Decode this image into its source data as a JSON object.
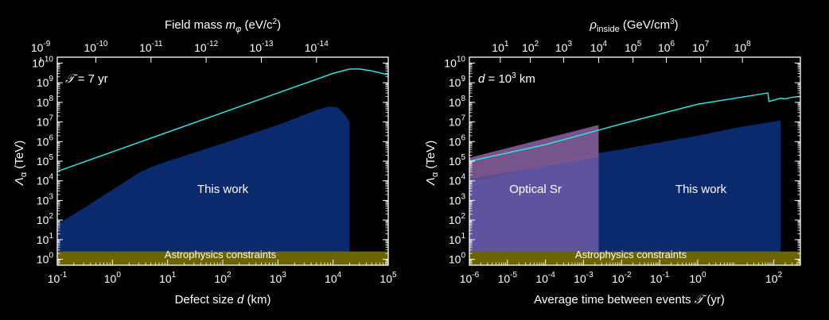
{
  "colors": {
    "background": "#000000",
    "region_fill": "#0b2a6e",
    "optical_fill": "#6f5aa8",
    "optical_top_fill": "#8a5a86",
    "astro_fill": "#6b6400",
    "curve": "#33dde0",
    "axis": "#ffffff"
  },
  "chart_data": [
    {
      "type": "area",
      "title": "",
      "xlabel": "Defect size d (km)",
      "ylabel": "Λα (TeV)",
      "top_axis_label": "Field mass mφ (eV/c²)",
      "xscale": "log",
      "yscale": "log",
      "xlim": [
        0.1,
        100000
      ],
      "ylim": [
        0.5,
        20000000000
      ],
      "x_ticks": [
        0.1,
        1,
        10,
        100,
        1000,
        10000,
        100000
      ],
      "x_tick_exponents": [
        "-1",
        "0",
        "1",
        "2",
        "3",
        "4",
        "5"
      ],
      "y_ticks": [
        1,
        10,
        100,
        1000,
        10000,
        100000,
        1000000,
        10000000,
        100000000,
        1000000000,
        10000000000
      ],
      "y_tick_exponents": [
        "0",
        "1",
        "2",
        "3",
        "4",
        "5",
        "6",
        "7",
        "8",
        "9",
        "10"
      ],
      "top_ticks": [
        {
          "x": 0.05,
          "exp": "-9"
        },
        {
          "x": 0.5,
          "exp": "-10"
        },
        {
          "x": 5,
          "exp": "-11"
        },
        {
          "x": 50,
          "exp": "-12"
        },
        {
          "x": 500,
          "exp": "-13"
        },
        {
          "x": 5000,
          "exp": "-14"
        }
      ],
      "annotation": "𝒯 = 7 yr",
      "series": [
        {
          "name": "This work",
          "kind": "region",
          "x": [
            0.1,
            0.3,
            1,
            3,
            5,
            10,
            100,
            1000,
            5000,
            8000,
            12000,
            16000,
            20000,
            20000
          ],
          "y": [
            60,
            400,
            3500,
            25000,
            50000,
            100000,
            800000,
            7000000,
            40000000,
            60000000,
            55000000,
            25000000,
            10000000,
            0.5
          ]
        },
        {
          "name": "curve",
          "kind": "line",
          "x": [
            0.1,
            1,
            10,
            100,
            1000,
            10000,
            20000,
            30000,
            50000,
            100000
          ],
          "y": [
            30000,
            300000,
            3000000,
            30000000,
            300000000,
            3000000000,
            5000000000,
            5000000000,
            4000000000,
            2500000000
          ]
        },
        {
          "name": "Astrophysics constraints",
          "kind": "band",
          "y_range": [
            0.5,
            2.5
          ]
        }
      ],
      "labels": [
        "This work",
        "Astrophysics constraints"
      ]
    },
    {
      "type": "area",
      "title": "",
      "xlabel": "Average time between events 𝒯 (yr)",
      "ylabel": "Λα (TeV)",
      "top_axis_label": "ρinside (GeV/cm³)",
      "xscale": "log",
      "yscale": "log",
      "xlim": [
        1e-06,
        500
      ],
      "ylim": [
        0.5,
        20000000000
      ],
      "x_ticks": [
        1e-06,
        1e-05,
        0.0001,
        0.001,
        0.01,
        0.1,
        1,
        100
      ],
      "x_tick_exponents": [
        "-6",
        "-5",
        "-4",
        "-3",
        "-2",
        "-1",
        "0",
        "2"
      ],
      "y_ticks": [
        1,
        10,
        100,
        1000,
        10000,
        100000,
        1000000,
        10000000,
        100000000,
        1000000000,
        10000000000
      ],
      "y_tick_exponents": [
        "0",
        "1",
        "2",
        "3",
        "4",
        "5",
        "6",
        "7",
        "8",
        "9",
        "10"
      ],
      "top_ticks": [
        {
          "x": 6.5e-06,
          "exp": "1"
        },
        {
          "x": 4e-05,
          "exp": "2"
        },
        {
          "x": 0.0003,
          "exp": "3"
        },
        {
          "x": 0.0025,
          "exp": "4"
        },
        {
          "x": 0.02,
          "exp": "5"
        },
        {
          "x": 0.15,
          "exp": "6"
        },
        {
          "x": 1.2,
          "exp": "7"
        },
        {
          "x": 15,
          "exp": "8"
        }
      ],
      "annotation": "d = 10³ km",
      "series": [
        {
          "name": "This work",
          "kind": "region",
          "x": [
            1e-06,
            0.001,
            0.01,
            0.1,
            1,
            10,
            150,
            150
          ],
          "y": [
            8000,
            200000,
            400000,
            900000,
            2000000,
            5000000,
            12000000,
            0.5
          ]
        },
        {
          "name": "Optical Sr",
          "kind": "region",
          "x": [
            1e-06,
            0.0025,
            0.0025
          ],
          "y_bottom": [
            0.5,
            0.5,
            0.5
          ],
          "y_top": [
            150000,
            7000000,
            7000000
          ]
        },
        {
          "name": "curve",
          "kind": "line",
          "x": [
            1e-06,
            0.0001,
            0.01,
            1,
            70,
            75,
            150,
            200,
            300,
            500
          ],
          "y": [
            100000,
            700000,
            8000000,
            80000000,
            300000000,
            110000000,
            160000000,
            150000000,
            180000000,
            200000000
          ]
        },
        {
          "name": "Astrophysics constraints",
          "kind": "band",
          "y_range": [
            0.5,
            2.5
          ]
        }
      ],
      "labels": [
        "Optical Sr",
        "This work",
        "Astrophysics constraints"
      ]
    }
  ]
}
